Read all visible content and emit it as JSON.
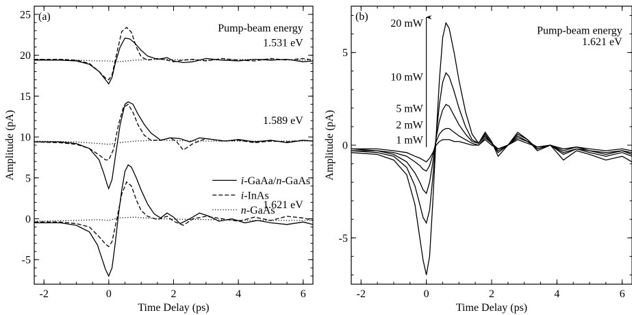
{
  "chart_data": [
    {
      "type": "line",
      "panel_label": "(a)",
      "xlabel": "Time Delay (ps)",
      "ylabel": "Amplitude (pA)",
      "xlim": [
        -2.3,
        6.3
      ],
      "ylim": [
        -8,
        26
      ],
      "x_ticks": [
        -2,
        0,
        2,
        4,
        6
      ],
      "x_tick_labels": [
        "-2",
        "0",
        "2",
        "4",
        "6"
      ],
      "y_ticks": [
        -5,
        0,
        5,
        10,
        15,
        20,
        25
      ],
      "y_tick_labels": [
        "-5",
        "0",
        "5",
        "10",
        "15",
        "20",
        "25"
      ],
      "legend_placement": "center-right",
      "legend": [
        {
          "style": "solid",
          "parts": [
            {
              "text": "i",
              "italic": true
            },
            {
              "text": "-GaAa/",
              "italic": false
            },
            {
              "text": "n",
              "italic": true
            },
            {
              "text": "-GaAs",
              "italic": false
            }
          ]
        },
        {
          "style": "dashed",
          "parts": [
            {
              "text": "i",
              "italic": true
            },
            {
              "text": "-InAs",
              "italic": false
            }
          ]
        },
        {
          "style": "dotted",
          "parts": [
            {
              "text": "n",
              "italic": true
            },
            {
              "text": "-GaAs",
              "italic": false
            }
          ]
        }
      ],
      "annotations": [
        {
          "text": "Pump-beam energy",
          "x": 6.0,
          "y": 22.9
        },
        {
          "text": "1.531 eV",
          "x": 6.0,
          "y": 21.1
        },
        {
          "text": "1.589 eV",
          "x": 6.0,
          "y": 11.6
        },
        {
          "text": "1.621 eV",
          "x": 6.0,
          "y": 1.3
        }
      ],
      "series": [
        {
          "style": "solid",
          "group": "1.531 eV",
          "x": [
            -2.3,
            -1.5,
            -1.0,
            -0.6,
            -0.3,
            -0.1,
            0.0,
            0.1,
            0.2,
            0.35,
            0.5,
            0.65,
            0.8,
            1.0,
            1.2,
            1.5,
            1.8,
            2.0,
            2.3,
            2.6,
            3.0,
            3.5,
            4.0,
            4.5,
            5.0,
            5.5,
            6.0,
            6.3
          ],
          "y": [
            19.4,
            19.4,
            19.3,
            18.9,
            18.0,
            17.0,
            16.5,
            17.3,
            19.0,
            21.0,
            22.1,
            22.0,
            21.5,
            20.6,
            19.9,
            19.5,
            19.7,
            19.3,
            19.1,
            19.2,
            19.6,
            19.4,
            19.3,
            19.5,
            19.4,
            19.5,
            19.2,
            19.3
          ]
        },
        {
          "style": "dashed",
          "group": "1.531 eV",
          "x": [
            -2.3,
            -1.5,
            -1.0,
            -0.6,
            -0.3,
            -0.1,
            0.0,
            0.1,
            0.25,
            0.4,
            0.55,
            0.7,
            0.85,
            1.0,
            1.2,
            1.5,
            1.8,
            2.0,
            2.3,
            2.6,
            3.0,
            3.5,
            4.0,
            4.5,
            5.0,
            5.5,
            6.0,
            6.3
          ],
          "y": [
            19.5,
            19.5,
            19.4,
            19.0,
            18.0,
            17.2,
            17.0,
            17.6,
            20.3,
            22.9,
            23.4,
            22.8,
            21.0,
            19.8,
            19.4,
            19.6,
            19.4,
            19.2,
            19.4,
            19.5,
            19.3,
            19.6,
            19.4,
            19.3,
            19.6,
            19.4,
            19.6,
            19.4
          ]
        },
        {
          "style": "dotted",
          "group": "1.531 eV",
          "x": [
            -2.3,
            -1.0,
            -0.3,
            0.0,
            0.3,
            0.8,
            1.5,
            3.0,
            4.5,
            6.3
          ],
          "y": [
            19.5,
            19.4,
            19.3,
            19.3,
            19.2,
            19.4,
            19.5,
            19.4,
            19.5,
            19.4
          ]
        },
        {
          "style": "solid",
          "group": "1.589 eV",
          "x": [
            -2.3,
            -1.5,
            -1.0,
            -0.6,
            -0.3,
            -0.15,
            -0.05,
            0.0,
            0.1,
            0.2,
            0.35,
            0.5,
            0.6,
            0.75,
            0.9,
            1.1,
            1.3,
            1.6,
            1.9,
            2.2,
            2.5,
            2.8,
            3.2,
            3.6,
            4.0,
            4.5,
            5.0,
            5.5,
            6.0,
            6.3
          ],
          "y": [
            9.4,
            9.4,
            9.2,
            8.6,
            7.2,
            5.5,
            4.2,
            3.7,
            4.8,
            7.5,
            11.5,
            14.0,
            14.3,
            14.0,
            12.8,
            11.5,
            10.5,
            9.6,
            9.9,
            9.8,
            9.4,
            9.9,
            9.7,
            9.5,
            9.7,
            9.4,
            9.6,
            9.3,
            9.6,
            9.5
          ]
        },
        {
          "style": "dashed",
          "group": "1.589 eV",
          "x": [
            -2.3,
            -1.5,
            -1.0,
            -0.6,
            -0.3,
            -0.1,
            0.0,
            0.15,
            0.3,
            0.45,
            0.6,
            0.75,
            0.9,
            1.1,
            1.3,
            1.6,
            1.9,
            2.1,
            2.3,
            2.6,
            3.0,
            3.5,
            4.0,
            4.5,
            5.0,
            5.5,
            6.0,
            6.3
          ],
          "y": [
            9.4,
            9.3,
            9.1,
            8.6,
            7.8,
            7.2,
            7.2,
            8.5,
            11.5,
            13.6,
            14.0,
            13.0,
            11.5,
            10.2,
            9.6,
            9.6,
            9.9,
            9.4,
            8.4,
            9.2,
            9.8,
            9.5,
            9.6,
            9.3,
            9.5,
            9.4,
            9.6,
            9.5
          ]
        },
        {
          "style": "dotted",
          "group": "1.589 eV",
          "x": [
            -2.3,
            -1.0,
            -0.3,
            0.0,
            0.3,
            0.8,
            1.5,
            3.0,
            4.5,
            6.3
          ],
          "y": [
            9.5,
            9.4,
            9.2,
            9.1,
            9.3,
            9.5,
            9.6,
            9.5,
            9.5,
            9.5
          ]
        },
        {
          "style": "solid",
          "group": "1.621 eV",
          "x": [
            -2.3,
            -1.5,
            -1.0,
            -0.6,
            -0.35,
            -0.2,
            -0.1,
            0.0,
            0.1,
            0.2,
            0.3,
            0.4,
            0.5,
            0.6,
            0.7,
            0.85,
            1.0,
            1.2,
            1.4,
            1.6,
            1.8,
            2.0,
            2.2,
            2.5,
            2.8,
            3.1,
            3.4,
            3.8,
            4.2,
            4.6,
            5.0,
            5.5,
            6.0,
            6.3
          ],
          "y": [
            -0.5,
            -0.5,
            -0.8,
            -1.6,
            -3.2,
            -5.0,
            -6.2,
            -7.0,
            -6.0,
            -3.0,
            0.5,
            3.5,
            5.8,
            6.6,
            6.3,
            5.0,
            3.5,
            1.8,
            0.6,
            0.1,
            0.7,
            0.2,
            -0.6,
            0.0,
            0.7,
            0.3,
            -0.3,
            0.0,
            -0.5,
            -0.2,
            -0.5,
            -0.7,
            -0.4,
            -0.7
          ]
        },
        {
          "style": "dashed",
          "group": "1.621 eV",
          "x": [
            -2.3,
            -1.5,
            -1.0,
            -0.6,
            -0.3,
            -0.1,
            0.0,
            0.1,
            0.25,
            0.4,
            0.55,
            0.7,
            0.85,
            1.0,
            1.2,
            1.5,
            1.8,
            2.0,
            2.3,
            2.6,
            3.0,
            3.5,
            4.0,
            4.5,
            5.0,
            5.5,
            6.0,
            6.3
          ],
          "y": [
            -0.4,
            -0.4,
            -0.6,
            -1.0,
            -2.2,
            -3.1,
            -3.4,
            -2.8,
            0.0,
            3.0,
            4.5,
            4.0,
            2.3,
            1.0,
            0.3,
            -0.1,
            0.3,
            -0.3,
            -0.8,
            0.0,
            0.3,
            0.0,
            -0.3,
            0.2,
            -0.2,
            0.3,
            0.1,
            -0.2
          ]
        },
        {
          "style": "dotted",
          "group": "1.621 eV",
          "x": [
            -2.3,
            -1.0,
            -0.3,
            0.0,
            0.3,
            0.8,
            1.5,
            3.0,
            4.5,
            6.3
          ],
          "y": [
            -0.3,
            -0.2,
            -0.1,
            -0.2,
            0.1,
            0.2,
            0.0,
            -0.1,
            -0.2,
            -0.2
          ]
        }
      ]
    },
    {
      "type": "line",
      "panel_label": "(b)",
      "xlabel": "Time Delay (ps)",
      "ylabel": "Amplitude (pA)",
      "xlim": [
        -2.3,
        6.3
      ],
      "ylim": [
        -7.5,
        7.5
      ],
      "x_ticks": [
        -2,
        0,
        2,
        4,
        6
      ],
      "x_tick_labels": [
        "-2",
        "0",
        "2",
        "4",
        "6"
      ],
      "y_ticks": [
        -5,
        0,
        5
      ],
      "y_tick_labels": [
        "-5",
        "0",
        "5"
      ],
      "arrow": {
        "x": 0.0,
        "y_from": -0.1,
        "y_to": 6.9
      },
      "annotations": [
        {
          "text": "Pump-beam energy",
          "x": 6.0,
          "y": 6.0
        },
        {
          "text": "1.621 eV",
          "x": 6.0,
          "y": 5.4
        }
      ],
      "power_labels": [
        {
          "text": "20 mW",
          "x": -0.1,
          "y": 6.6
        },
        {
          "text": "10 mW",
          "x": -0.1,
          "y": 3.7
        },
        {
          "text": "5 mW",
          "x": -0.1,
          "y": 2.0
        },
        {
          "text": "2 mW",
          "x": -0.1,
          "y": 1.1
        },
        {
          "text": "1 mW",
          "x": -0.1,
          "y": 0.3
        }
      ],
      "series": [
        {
          "name": "20 mW",
          "style": "solid",
          "x": [
            -2.3,
            -1.5,
            -1.0,
            -0.6,
            -0.35,
            -0.2,
            -0.1,
            0.0,
            0.1,
            0.2,
            0.3,
            0.4,
            0.5,
            0.6,
            0.7,
            0.85,
            1.0,
            1.2,
            1.4,
            1.6,
            1.8,
            2.0,
            2.2,
            2.5,
            2.8,
            3.1,
            3.4,
            3.8,
            4.2,
            4.6,
            5.0,
            5.5,
            6.0,
            6.3
          ],
          "y": [
            -0.4,
            -0.5,
            -0.8,
            -1.6,
            -3.2,
            -5.0,
            -6.2,
            -7.0,
            -6.0,
            -3.0,
            0.5,
            3.5,
            5.8,
            6.6,
            6.3,
            5.0,
            3.5,
            1.8,
            0.6,
            0.1,
            0.7,
            0.2,
            -0.6,
            0.0,
            0.7,
            0.3,
            -0.3,
            0.0,
            -0.8,
            -0.3,
            -0.5,
            -0.8,
            -0.6,
            -0.9
          ]
        },
        {
          "name": "10 mW",
          "style": "solid",
          "x": [
            -2.3,
            -1.5,
            -1.0,
            -0.6,
            -0.35,
            -0.2,
            -0.1,
            0.0,
            0.1,
            0.2,
            0.3,
            0.4,
            0.5,
            0.6,
            0.7,
            0.85,
            1.0,
            1.2,
            1.4,
            1.6,
            1.8,
            2.0,
            2.2,
            2.5,
            2.8,
            3.1,
            3.4,
            3.8,
            4.2,
            4.6,
            5.0,
            5.5,
            6.0,
            6.3
          ],
          "y": [
            -0.3,
            -0.4,
            -0.6,
            -1.2,
            -2.2,
            -3.2,
            -3.9,
            -4.2,
            -3.5,
            -1.7,
            0.5,
            2.2,
            3.4,
            3.9,
            3.7,
            2.9,
            2.0,
            1.0,
            0.3,
            0.1,
            0.6,
            0.1,
            -0.4,
            0.0,
            0.6,
            0.3,
            -0.2,
            0.0,
            -0.5,
            -0.2,
            -0.4,
            -0.6,
            -0.4,
            -0.6
          ]
        },
        {
          "name": "5 mW",
          "style": "solid",
          "x": [
            -2.3,
            -1.5,
            -1.0,
            -0.6,
            -0.35,
            -0.2,
            -0.1,
            0.0,
            0.1,
            0.2,
            0.3,
            0.4,
            0.5,
            0.6,
            0.7,
            0.85,
            1.0,
            1.2,
            1.4,
            1.6,
            1.8,
            2.0,
            2.2,
            2.5,
            2.8,
            3.1,
            3.4,
            3.8,
            4.2,
            4.6,
            5.0,
            5.5,
            6.0,
            6.3
          ],
          "y": [
            -0.3,
            -0.3,
            -0.5,
            -0.9,
            -1.5,
            -2.0,
            -2.4,
            -2.6,
            -2.0,
            -0.9,
            0.4,
            1.3,
            1.9,
            2.2,
            2.1,
            1.6,
            1.1,
            0.6,
            0.2,
            0.1,
            0.5,
            0.1,
            -0.3,
            0.0,
            0.5,
            0.2,
            -0.2,
            0.0,
            -0.4,
            -0.2,
            -0.3,
            -0.5,
            -0.3,
            -0.5
          ]
        },
        {
          "name": "2 mW",
          "style": "solid",
          "x": [
            -2.3,
            -1.5,
            -1.0,
            -0.6,
            -0.35,
            -0.2,
            -0.1,
            0.0,
            0.1,
            0.2,
            0.3,
            0.4,
            0.5,
            0.6,
            0.7,
            0.85,
            1.0,
            1.2,
            1.4,
            1.6,
            1.8,
            2.0,
            2.2,
            2.5,
            2.8,
            3.1,
            3.4,
            3.8,
            4.2,
            4.6,
            5.0,
            5.5,
            6.0,
            6.3
          ],
          "y": [
            -0.2,
            -0.3,
            -0.4,
            -0.6,
            -0.9,
            -1.1,
            -1.3,
            -1.4,
            -1.1,
            -0.5,
            0.2,
            0.6,
            0.8,
            0.9,
            0.9,
            0.7,
            0.5,
            0.3,
            0.1,
            0.0,
            0.4,
            0.1,
            -0.2,
            0.0,
            0.4,
            0.2,
            -0.1,
            0.0,
            -0.3,
            -0.1,
            -0.3,
            -0.4,
            -0.3,
            -0.4
          ]
        },
        {
          "name": "1 mW",
          "style": "solid",
          "x": [
            -2.3,
            -1.5,
            -1.0,
            -0.6,
            -0.35,
            -0.2,
            -0.1,
            0.0,
            0.1,
            0.2,
            0.3,
            0.4,
            0.5,
            0.6,
            0.7,
            0.85,
            1.0,
            1.2,
            1.4,
            1.6,
            1.8,
            2.0,
            2.2,
            2.5,
            2.8,
            3.1,
            3.4,
            3.8,
            4.2,
            4.6,
            5.0,
            5.5,
            6.0,
            6.3
          ],
          "y": [
            -0.2,
            -0.2,
            -0.3,
            -0.4,
            -0.6,
            -0.7,
            -0.8,
            -0.9,
            -0.7,
            -0.4,
            0.0,
            0.2,
            0.3,
            0.3,
            0.3,
            0.2,
            0.2,
            0.1,
            0.0,
            0.0,
            0.3,
            0.0,
            -0.2,
            0.0,
            0.3,
            0.1,
            -0.1,
            0.0,
            -0.2,
            -0.1,
            -0.2,
            -0.3,
            -0.2,
            -0.3
          ]
        }
      ]
    }
  ]
}
